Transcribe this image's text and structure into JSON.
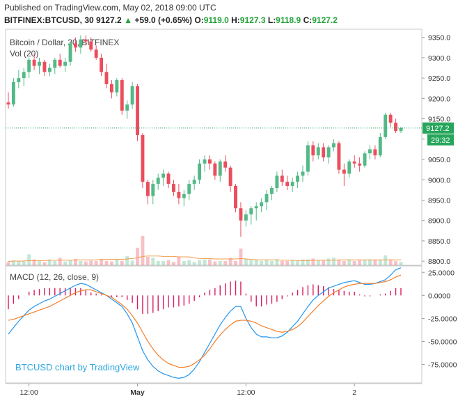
{
  "header": {
    "published": "Published on TradingView.com, May 02, 2018 09:00 UTC",
    "symbol": "BITFINEX:BTCUSD, 30",
    "last": "9127.2",
    "change": "+59.0 (+0.65%)",
    "o_label": "O:",
    "o_val": "9119.0",
    "h_label": "H:",
    "h_val": "9127.3",
    "l_label": "L:",
    "l_val": "9118.9",
    "c_label": "C:",
    "c_val": "9127.2"
  },
  "colors": {
    "up": "#53b987",
    "down": "#eb4d5c",
    "vol_ma": "#f39b4b",
    "macd": "#2196f3",
    "signal": "#f57c26",
    "hist": "#d81b60",
    "last_line": "#26a65b"
  },
  "chart_data": [
    {
      "type": "candlestick",
      "title": "Bitcoin / Dollar, 30, BITFINEX",
      "ylim": [
        8790,
        9370
      ],
      "yticks": [
        "9350.0",
        "9300.0",
        "9250.0",
        "9200.0",
        "9150.0",
        "9100.0",
        "9050.0",
        "9000.0",
        "8950.0",
        "8900.0",
        "8850.0",
        "8800.0"
      ],
      "ytick_values": [
        9350,
        9300,
        9250,
        9200,
        9150,
        9100,
        9050,
        9000,
        8950,
        8900,
        8850,
        8800
      ],
      "xticks": [
        "12:00",
        "May",
        "12:00",
        "2"
      ],
      "xtick_index": [
        4,
        25,
        46,
        67
      ],
      "last_price_label": "9127.2",
      "countdown_label": "29:32",
      "last_price": 9127.2,
      "ohlc": [
        [
          9190,
          9215,
          9175,
          9185
        ],
        [
          9185,
          9250,
          9180,
          9240
        ],
        [
          9240,
          9270,
          9225,
          9250
        ],
        [
          9250,
          9275,
          9230,
          9265
        ],
        [
          9265,
          9300,
          9250,
          9295
        ],
        [
          9295,
          9310,
          9270,
          9280
        ],
        [
          9280,
          9300,
          9260,
          9290
        ],
        [
          9290,
          9295,
          9255,
          9265
        ],
        [
          9265,
          9285,
          9255,
          9275
        ],
        [
          9275,
          9300,
          9260,
          9295
        ],
        [
          9295,
          9310,
          9275,
          9280
        ],
        [
          9280,
          9300,
          9265,
          9290
        ],
        [
          9290,
          9340,
          9280,
          9335
        ],
        [
          9335,
          9350,
          9315,
          9325
        ],
        [
          9325,
          9355,
          9310,
          9345
        ],
        [
          9345,
          9355,
          9330,
          9340
        ],
        [
          9340,
          9350,
          9315,
          9320
        ],
        [
          9320,
          9330,
          9295,
          9300
        ],
        [
          9300,
          9310,
          9255,
          9265
        ],
        [
          9265,
          9285,
          9225,
          9235
        ],
        [
          9235,
          9245,
          9200,
          9215
        ],
        [
          9215,
          9250,
          9205,
          9245
        ],
        [
          9245,
          9250,
          9160,
          9170
        ],
        [
          9170,
          9195,
          9150,
          9185
        ],
        [
          9185,
          9240,
          9175,
          9230
        ],
        [
          9230,
          9235,
          9095,
          9110
        ],
        [
          9110,
          9115,
          8980,
          8995
        ],
        [
          8995,
          9000,
          8940,
          8960
        ],
        [
          8960,
          9000,
          8940,
          8990
        ],
        [
          8990,
          9015,
          8975,
          9005
        ],
        [
          9005,
          9025,
          8985,
          9015
        ],
        [
          9015,
          9020,
          8980,
          8990
        ],
        [
          8990,
          9000,
          8960,
          8970
        ],
        [
          8970,
          8990,
          8940,
          8955
        ],
        [
          8955,
          8975,
          8935,
          8965
        ],
        [
          8965,
          9000,
          8950,
          8990
        ],
        [
          8990,
          9010,
          8975,
          9000
        ],
        [
          9000,
          9050,
          8990,
          9040
        ],
        [
          9040,
          9060,
          9020,
          9050
        ],
        [
          9050,
          9060,
          9025,
          9040
        ],
        [
          9040,
          9045,
          9000,
          9010
        ],
        [
          9010,
          9050,
          8995,
          9045
        ],
        [
          9045,
          9060,
          9020,
          9030
        ],
        [
          9030,
          9035,
          8970,
          8985
        ],
        [
          8985,
          8990,
          8920,
          8930
        ],
        [
          8930,
          8945,
          8860,
          8900
        ],
        [
          8900,
          8925,
          8885,
          8915
        ],
        [
          8915,
          8935,
          8890,
          8930
        ],
        [
          8930,
          8945,
          8900,
          8935
        ],
        [
          8935,
          8955,
          8920,
          8945
        ],
        [
          8945,
          8975,
          8925,
          8965
        ],
        [
          8965,
          8985,
          8950,
          8980
        ],
        [
          8980,
          9020,
          8970,
          9010
        ],
        [
          9010,
          9025,
          8985,
          8995
        ],
        [
          8995,
          9010,
          8975,
          8985
        ],
        [
          8985,
          9005,
          8970,
          8995
        ],
        [
          8995,
          9020,
          8980,
          9010
        ],
        [
          9010,
          9035,
          8995,
          9020
        ],
        [
          9020,
          9095,
          9010,
          9085
        ],
        [
          9085,
          9095,
          9045,
          9060
        ],
        [
          9060,
          9090,
          9050,
          9080
        ],
        [
          9080,
          9090,
          9045,
          9055
        ],
        [
          9055,
          9085,
          9040,
          9080
        ],
        [
          9080,
          9100,
          9070,
          9090
        ],
        [
          9090,
          9095,
          9015,
          9025
        ],
        [
          9025,
          9040,
          8985,
          9015
        ],
        [
          9015,
          9050,
          9005,
          9045
        ],
        [
          9045,
          9060,
          9030,
          9040
        ],
        [
          9040,
          9055,
          9020,
          9035
        ],
        [
          9035,
          9070,
          9030,
          9065
        ],
        [
          9065,
          9085,
          9050,
          9075
        ],
        [
          9075,
          9085,
          9050,
          9060
        ],
        [
          9060,
          9115,
          9055,
          9105
        ],
        [
          9105,
          9165,
          9100,
          9160
        ],
        [
          9160,
          9165,
          9130,
          9140
        ],
        [
          9140,
          9150,
          9115,
          9120
        ],
        [
          9120,
          9130,
          9115,
          9127.2
        ]
      ],
      "volume_label": "Vol (20)",
      "volume_max": 60,
      "volume": [
        8,
        12,
        10,
        9,
        26,
        14,
        10,
        8,
        14,
        10,
        18,
        9,
        12,
        15,
        10,
        9,
        11,
        10,
        14,
        10,
        9,
        14,
        10,
        22,
        11,
        42,
        70,
        20,
        18,
        10,
        10,
        12,
        8,
        20,
        10,
        12,
        8,
        12,
        14,
        14,
        9,
        10,
        10,
        18,
        10,
        40,
        16,
        12,
        14,
        10,
        12,
        10,
        14,
        10,
        10,
        12,
        10,
        14,
        14,
        16,
        12,
        11,
        16,
        18,
        12,
        10,
        14,
        10,
        12,
        12,
        14,
        12,
        12,
        24,
        14,
        10,
        8
      ],
      "volume_ma": [
        9,
        10,
        10,
        10,
        11,
        11,
        11,
        11,
        12,
        12,
        12,
        12,
        12,
        13,
        13,
        13,
        13,
        13,
        14,
        14,
        14,
        14,
        14,
        15,
        16,
        18,
        21,
        22,
        22,
        22,
        21,
        21,
        21,
        20,
        20,
        20,
        18,
        16,
        16,
        16,
        15,
        15,
        15,
        15,
        15,
        16,
        15,
        14,
        13,
        13,
        13,
        13,
        13,
        12,
        12,
        12,
        11,
        11,
        11,
        12,
        12,
        12,
        12,
        12,
        13,
        13,
        13,
        13,
        13,
        13,
        13,
        13,
        13,
        13,
        13,
        13,
        13
      ]
    },
    {
      "type": "macd",
      "title": "MACD (12, 26, close, 9)",
      "ylim": [
        -95,
        32
      ],
      "yticks": [
        "25.0000",
        "0.0000",
        "-25.0000",
        "-50.0000",
        "-75.0000"
      ],
      "ytick_values": [
        25,
        0,
        -25,
        -50,
        -75
      ],
      "macd": [
        -42,
        -35,
        -28,
        -22,
        -16,
        -12,
        -9,
        -6,
        -4,
        -1,
        2,
        5,
        8,
        11,
        13,
        12,
        9,
        6,
        3,
        0,
        -4,
        -8,
        -12,
        -20,
        -30,
        -45,
        -60,
        -70,
        -77,
        -82,
        -85,
        -87,
        -89,
        -90,
        -89,
        -86,
        -80,
        -72,
        -62,
        -52,
        -42,
        -32,
        -24,
        -17,
        -12,
        -12,
        -25,
        -35,
        -42,
        -45,
        -45,
        -46,
        -46,
        -44,
        -40,
        -34,
        -28,
        -20,
        -12,
        -5,
        0,
        4,
        8,
        10,
        12,
        14,
        15,
        16,
        14,
        12,
        12,
        13,
        15,
        17,
        22,
        28,
        30
      ],
      "signal": [
        -27,
        -26,
        -24,
        -22,
        -20,
        -18,
        -16,
        -14,
        -12,
        -9,
        -6,
        -3,
        0,
        3,
        5,
        6,
        6,
        4,
        2,
        0,
        -2,
        -6,
        -10,
        -15,
        -22,
        -30,
        -40,
        -50,
        -58,
        -65,
        -70,
        -74,
        -76,
        -78,
        -78,
        -77,
        -74,
        -70,
        -65,
        -58,
        -50,
        -43,
        -37,
        -32,
        -28,
        -27,
        -27,
        -28,
        -30,
        -33,
        -35,
        -37,
        -39,
        -40,
        -39,
        -37,
        -34,
        -29,
        -23,
        -17,
        -11,
        -6,
        -1,
        3,
        6,
        9,
        11,
        12,
        13,
        13,
        13,
        13,
        14,
        15,
        17,
        20,
        22
      ],
      "hist": [
        -15,
        -9,
        -4,
        0,
        4,
        6,
        7,
        8,
        8,
        8,
        8,
        8,
        8,
        8,
        8,
        6,
        3,
        2,
        1,
        0,
        -2,
        -2,
        -2,
        -5,
        -8,
        -15,
        -20,
        -20,
        -19,
        -17,
        -15,
        -13,
        -13,
        -12,
        -11,
        -9,
        -6,
        -2,
        3,
        6,
        8,
        11,
        13,
        15,
        16,
        15,
        2,
        -7,
        -12,
        -12,
        -10,
        -9,
        -7,
        -4,
        -1,
        3,
        6,
        9,
        11,
        12,
        11,
        10,
        9,
        7,
        6,
        5,
        4,
        4,
        1,
        -1,
        -1,
        0,
        1,
        2,
        5,
        8,
        8
      ]
    }
  ],
  "watermark": "BTCUSD chart by TradingView"
}
